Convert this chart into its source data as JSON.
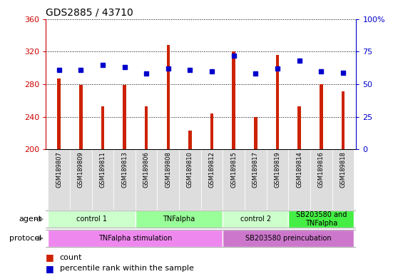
{
  "title": "GDS2885 / 43710",
  "samples": [
    "GSM189807",
    "GSM189809",
    "GSM189811",
    "GSM189813",
    "GSM189806",
    "GSM189808",
    "GSM189810",
    "GSM189812",
    "GSM189815",
    "GSM189817",
    "GSM189819",
    "GSM189814",
    "GSM189816",
    "GSM189818"
  ],
  "count_values": [
    287,
    279,
    253,
    279,
    253,
    328,
    223,
    244,
    320,
    240,
    316,
    253,
    280,
    271
  ],
  "percentile_values": [
    61,
    61,
    65,
    63,
    58,
    62,
    61,
    60,
    72,
    58,
    62,
    68,
    60,
    59
  ],
  "baseline": 200,
  "ylim_left": [
    200,
    360
  ],
  "ylim_right": [
    0,
    100
  ],
  "yticks_left": [
    200,
    240,
    280,
    320,
    360
  ],
  "yticks_right": [
    0,
    25,
    50,
    75,
    100
  ],
  "agent_groups": [
    {
      "label": "control 1",
      "start": 0,
      "end": 4,
      "color": "#ccffcc"
    },
    {
      "label": "TNFalpha",
      "start": 4,
      "end": 8,
      "color": "#99ff99"
    },
    {
      "label": "control 2",
      "start": 8,
      "end": 11,
      "color": "#ccffcc"
    },
    {
      "label": "SB203580 and\nTNFalpha",
      "start": 11,
      "end": 14,
      "color": "#44ee44"
    }
  ],
  "protocol_groups": [
    {
      "label": "TNFalpha stimulation",
      "start": 0,
      "end": 8,
      "color": "#ee88ee"
    },
    {
      "label": "SB203580 preincubation",
      "start": 8,
      "end": 14,
      "color": "#cc77cc"
    }
  ],
  "bar_color": "#cc2200",
  "dot_color": "#0000cc",
  "tick_label_color_left": "#cc0000",
  "tick_label_color_right": "#0000cc",
  "sample_box_color": "#dddddd",
  "bar_width": 0.15,
  "dot_size": 5
}
